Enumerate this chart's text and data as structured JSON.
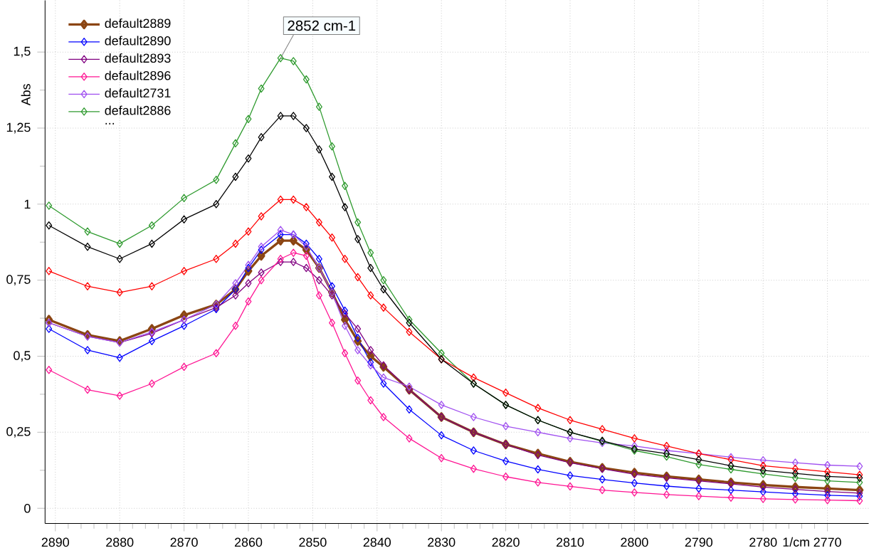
{
  "chart_data": {
    "type": "line",
    "ylabel": "Abs",
    "xlabel": "1/cm",
    "x": [
      2891,
      2885,
      2880,
      2875,
      2870,
      2865,
      2862,
      2860,
      2858,
      2855,
      2853,
      2851,
      2849,
      2847,
      2845,
      2843,
      2841,
      2839,
      2835,
      2830,
      2825,
      2820,
      2815,
      2810,
      2805,
      2800,
      2795,
      2790,
      2785,
      2780,
      2775,
      2770,
      2765
    ],
    "series": [
      {
        "name": "default2889",
        "color": "#8b4513",
        "values": [
          0.62,
          0.57,
          0.55,
          0.59,
          0.635,
          0.67,
          0.72,
          0.78,
          0.83,
          0.88,
          0.88,
          0.85,
          0.79,
          0.71,
          0.62,
          0.55,
          0.5,
          0.465,
          0.39,
          0.3,
          0.25,
          0.21,
          0.18,
          0.153,
          0.133,
          0.117,
          0.105,
          0.095,
          0.085,
          0.077,
          0.07,
          0.065,
          0.06
        ]
      },
      {
        "name": "default2890",
        "color": "#0000ff",
        "values": [
          0.59,
          0.52,
          0.495,
          0.55,
          0.6,
          0.655,
          0.72,
          0.79,
          0.85,
          0.9,
          0.9,
          0.87,
          0.82,
          0.73,
          0.65,
          0.56,
          0.48,
          0.41,
          0.325,
          0.24,
          0.19,
          0.155,
          0.128,
          0.108,
          0.095,
          0.083,
          0.073,
          0.065,
          0.06,
          0.054,
          0.048,
          0.043,
          0.04
        ]
      },
      {
        "name": "default2893",
        "color": "#800080",
        "values": [
          0.61,
          0.565,
          0.545,
          0.575,
          0.62,
          0.66,
          0.7,
          0.74,
          0.775,
          0.81,
          0.81,
          0.79,
          0.75,
          0.7,
          0.64,
          0.59,
          0.52,
          0.47,
          0.39,
          0.3,
          0.25,
          0.21,
          0.175,
          0.15,
          0.13,
          0.112,
          0.1,
          0.09,
          0.08,
          0.07,
          0.062,
          0.055,
          0.05
        ]
      },
      {
        "name": "default2896",
        "color": "#ff1493",
        "values": [
          0.455,
          0.39,
          0.37,
          0.41,
          0.465,
          0.51,
          0.6,
          0.68,
          0.75,
          0.82,
          0.84,
          0.83,
          0.7,
          0.61,
          0.51,
          0.42,
          0.355,
          0.3,
          0.23,
          0.165,
          0.13,
          0.104,
          0.085,
          0.072,
          0.06,
          0.052,
          0.045,
          0.04,
          0.035,
          0.031,
          0.029,
          0.027,
          0.025
        ]
      },
      {
        "name": "default2731",
        "color": "#a050f0",
        "values": [
          0.61,
          0.565,
          0.545,
          0.58,
          0.62,
          0.67,
          0.74,
          0.8,
          0.86,
          0.915,
          0.9,
          0.86,
          0.79,
          0.71,
          0.6,
          0.52,
          0.47,
          0.43,
          0.4,
          0.34,
          0.3,
          0.27,
          0.25,
          0.23,
          0.215,
          0.205,
          0.19,
          0.18,
          0.168,
          0.158,
          0.15,
          0.142,
          0.138
        ]
      },
      {
        "name": "default2886",
        "color": "#2e9a2e",
        "values": [
          0.995,
          0.91,
          0.87,
          0.93,
          1.02,
          1.08,
          1.2,
          1.28,
          1.38,
          1.48,
          1.47,
          1.41,
          1.32,
          1.19,
          1.06,
          0.94,
          0.84,
          0.75,
          0.62,
          0.51,
          0.41,
          0.34,
          0.29,
          0.25,
          0.22,
          0.19,
          0.17,
          0.144,
          0.128,
          0.113,
          0.1,
          0.09,
          0.085
        ]
      },
      {
        "color": "#ff0000",
        "values": [
          0.78,
          0.73,
          0.71,
          0.73,
          0.78,
          0.82,
          0.87,
          0.91,
          0.96,
          1.015,
          1.015,
          0.99,
          0.94,
          0.89,
          0.82,
          0.76,
          0.7,
          0.66,
          0.58,
          0.49,
          0.43,
          0.38,
          0.33,
          0.29,
          0.26,
          0.23,
          0.205,
          0.18,
          0.16,
          0.14,
          0.13,
          0.12,
          0.11
        ]
      },
      {
        "color": "#000000",
        "values": [
          0.93,
          0.86,
          0.82,
          0.87,
          0.95,
          1.0,
          1.09,
          1.15,
          1.22,
          1.29,
          1.29,
          1.25,
          1.18,
          1.09,
          0.99,
          0.885,
          0.79,
          0.72,
          0.61,
          0.49,
          0.41,
          0.34,
          0.29,
          0.25,
          0.222,
          0.195,
          0.18,
          0.16,
          0.14,
          0.125,
          0.115,
          0.105,
          0.1
        ]
      }
    ],
    "xlim": [
      2891.6,
      2763.6
    ],
    "xticks": [
      2890,
      2880,
      2870,
      2860,
      2850,
      2840,
      2830,
      2820,
      2810,
      2800,
      2790,
      2780,
      2770
    ],
    "ylim": [
      -0.05,
      1.67
    ],
    "yticks": [
      0,
      {
        "value": 0.25,
        "label": "0,25"
      },
      {
        "value": 0.5,
        "label": "0,5"
      },
      {
        "value": 0.75,
        "label": "0,75"
      },
      1,
      {
        "value": 1.25,
        "label": "1,25"
      },
      {
        "value": 1.5,
        "label": "1,5"
      }
    ],
    "grid": true,
    "legend": "top left",
    "marker": "diamond",
    "line_style": "solid",
    "annotations": [
      {
        "text": "2852 cm-1",
        "x": 2855,
        "y": 1.48
      },
      "..."
    ]
  }
}
